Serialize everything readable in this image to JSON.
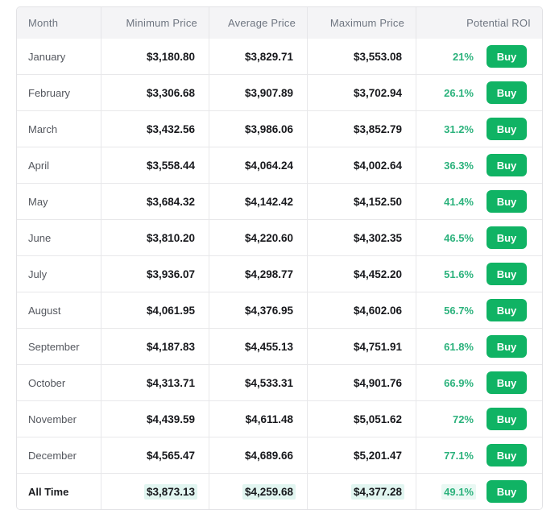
{
  "table": {
    "headers": {
      "month": "Month",
      "min": "Minimum Price",
      "avg": "Average Price",
      "max": "Maximum Price",
      "roi": "Potential ROI"
    },
    "buy_label": "Buy",
    "rows": [
      {
        "month": "January",
        "min": "$3,180.80",
        "avg": "$3,829.71",
        "max": "$3,553.08",
        "roi": "21%"
      },
      {
        "month": "February",
        "min": "$3,306.68",
        "avg": "$3,907.89",
        "max": "$3,702.94",
        "roi": "26.1%"
      },
      {
        "month": "March",
        "min": "$3,432.56",
        "avg": "$3,986.06",
        "max": "$3,852.79",
        "roi": "31.2%"
      },
      {
        "month": "April",
        "min": "$3,558.44",
        "avg": "$4,064.24",
        "max": "$4,002.64",
        "roi": "36.3%"
      },
      {
        "month": "May",
        "min": "$3,684.32",
        "avg": "$4,142.42",
        "max": "$4,152.50",
        "roi": "41.4%"
      },
      {
        "month": "June",
        "min": "$3,810.20",
        "avg": "$4,220.60",
        "max": "$4,302.35",
        "roi": "46.5%"
      },
      {
        "month": "July",
        "min": "$3,936.07",
        "avg": "$4,298.77",
        "max": "$4,452.20",
        "roi": "51.6%"
      },
      {
        "month": "August",
        "min": "$4,061.95",
        "avg": "$4,376.95",
        "max": "$4,602.06",
        "roi": "56.7%"
      },
      {
        "month": "September",
        "min": "$4,187.83",
        "avg": "$4,455.13",
        "max": "$4,751.91",
        "roi": "61.8%"
      },
      {
        "month": "October",
        "min": "$4,313.71",
        "avg": "$4,533.31",
        "max": "$4,901.76",
        "roi": "66.9%"
      },
      {
        "month": "November",
        "min": "$4,439.59",
        "avg": "$4,611.48",
        "max": "$5,051.62",
        "roi": "72%"
      },
      {
        "month": "December",
        "min": "$4,565.47",
        "avg": "$4,689.66",
        "max": "$5,201.47",
        "roi": "77.1%"
      },
      {
        "month": "All Time",
        "min": "$3,873.13",
        "avg": "$4,259.68",
        "max": "$4,377.28",
        "roi": "49.1%",
        "emphasis": true
      }
    ],
    "colors": {
      "buy_button_green": "#10b364",
      "roi_text_green": "#2bb27c",
      "header_background": "#f4f4f6",
      "highlight_mint": "#e1f5f0",
      "border_gray": "#e8e8ea"
    }
  }
}
